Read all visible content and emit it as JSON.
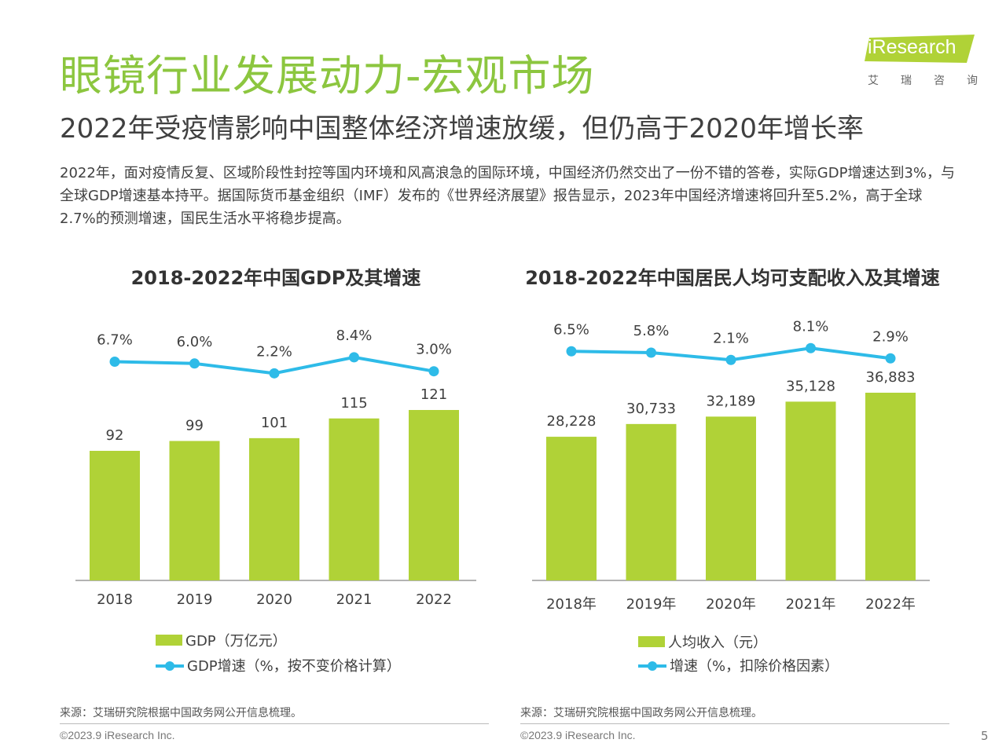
{
  "header": {
    "title": "眼镜行业发展动力-宏观市场",
    "subtitle": "2022年受疫情影响中国整体经济增速放缓，但仍高于2020年增长率",
    "body": "2022年，面对疫情反复、区域阶段性封控等国内环境和风高浪急的国际环境，中国经济仍然交出了一份不错的答卷，实际GDP增速达到3%，与全球GDP增速基本持平。据国际货币基金组织（IMF）发布的《世界经济展望》报告显示，2023年中国经济增速将回升至5.2%，高于全球2.7%的预测增速，国民生活水平将稳步提高。"
  },
  "logo": {
    "wordmark": "iResearch",
    "cn": [
      "艾",
      "瑞",
      "咨",
      "询"
    ],
    "color": "#b0d237"
  },
  "colors": {
    "title": "#8cc63f",
    "bar": "#b0d237",
    "line": "#2ebbe8"
  },
  "chart_data": [
    {
      "type": "bar",
      "title": "2018-2022年中国GDP及其增速",
      "categories": [
        "2018",
        "2019",
        "2020",
        "2021",
        "2022"
      ],
      "series": [
        {
          "name": "GDP（万亿元）",
          "type": "bar",
          "values": [
            92,
            99,
            101,
            115,
            121
          ],
          "labels": [
            "92",
            "99",
            "101",
            "115",
            "121"
          ]
        },
        {
          "name": "GDP增速（%，按不变价格计算）",
          "type": "line",
          "values": [
            6.7,
            6.0,
            2.2,
            8.4,
            3.0
          ],
          "labels": [
            "6.7%",
            "6.0%",
            "2.2%",
            "8.4%",
            "3.0%"
          ]
        }
      ],
      "grid": false,
      "legend_position": "bottom",
      "source": "来源：艾瑞研究院根据中国政务网公开信息梳理。"
    },
    {
      "type": "bar",
      "title": "2018-2022年中国居民人均可支配收入及其增速",
      "categories": [
        "2018年",
        "2019年",
        "2020年",
        "2021年",
        "2022年"
      ],
      "series": [
        {
          "name": "人均收入（元）",
          "type": "bar",
          "values": [
            28228,
            30733,
            32189,
            35128,
            36883
          ],
          "labels": [
            "28,228",
            "30,733",
            "32,189",
            "35,128",
            "36,883"
          ]
        },
        {
          "name": "增速（%，扣除价格因素）",
          "type": "line",
          "values": [
            6.5,
            5.8,
            2.1,
            8.1,
            2.9
          ],
          "labels": [
            "6.5%",
            "5.8%",
            "2.1%",
            "8.1%",
            "2.9%"
          ]
        }
      ],
      "grid": false,
      "legend_position": "bottom",
      "source": "来源：艾瑞研究院根据中国政务网公开信息梳理。"
    }
  ],
  "footer": {
    "copyright": "©2023.9 iResearch Inc.",
    "page_number": "5"
  }
}
